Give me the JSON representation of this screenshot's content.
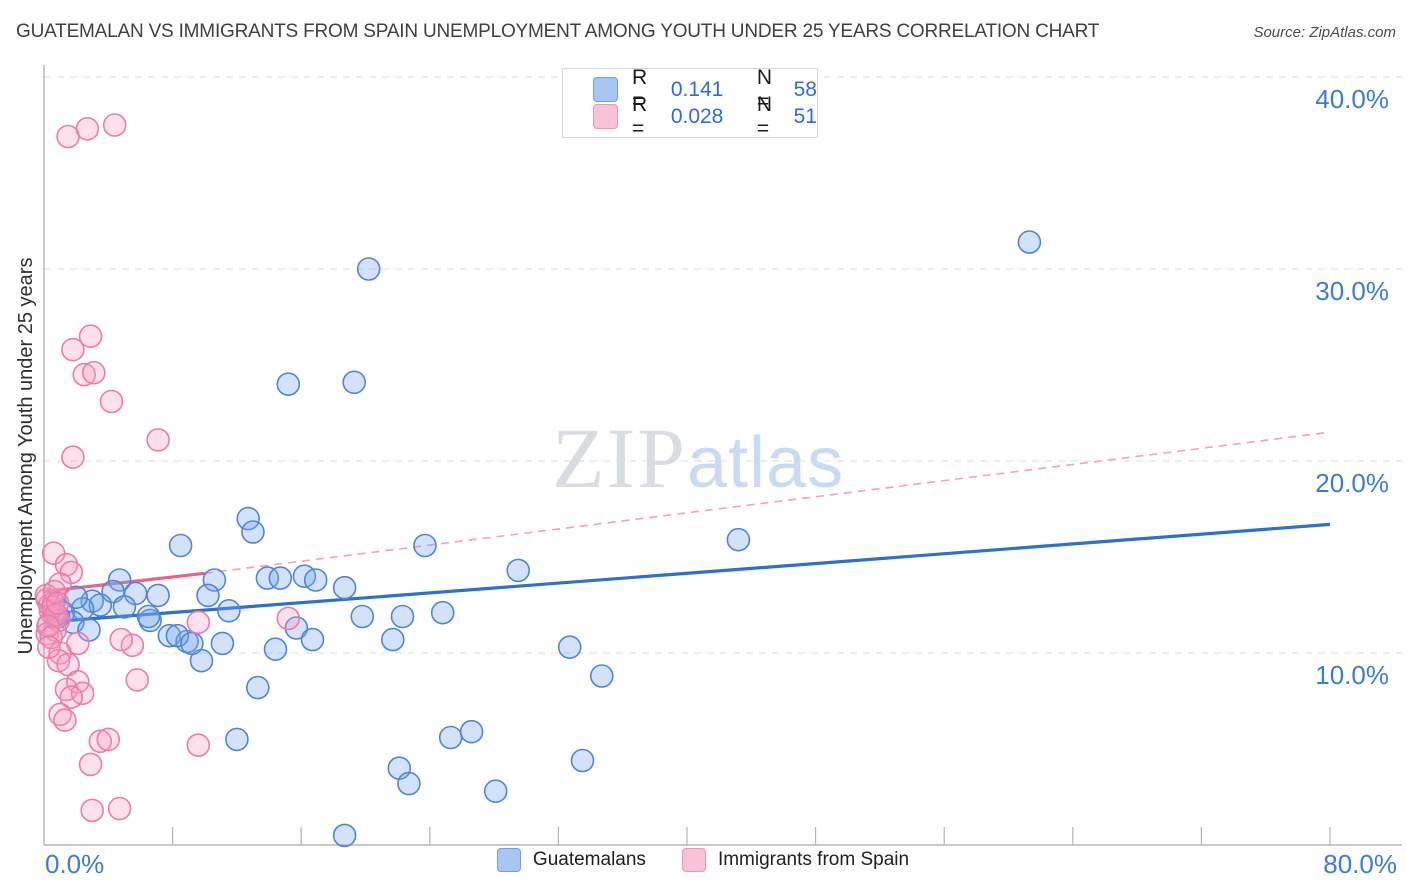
{
  "page": {
    "title": "GUATEMALAN VS IMMIGRANTS FROM SPAIN UNEMPLOYMENT AMONG YOUTH UNDER 25 YEARS CORRELATION CHART",
    "source": "Source: ZipAtlas.com"
  },
  "watermark": {
    "zip": "ZIP",
    "atlas": "atlas"
  },
  "legend_box": {
    "rows": [
      {
        "series": "Guatemalans",
        "r_label": "R =",
        "r_value": "0.141",
        "n_label": "N =",
        "n_value": "58"
      },
      {
        "series": "Immigrants from Spain",
        "r_label": "R =",
        "r_value": "0.028",
        "n_label": "N =",
        "n_value": "51"
      }
    ]
  },
  "bottom_legend": [
    {
      "label": "Guatemalans"
    },
    {
      "label": "Immigrants from Spain"
    }
  ],
  "chart_data": {
    "type": "scatter",
    "title": "Guatemalan vs Immigrants from Spain Unemployment Among Youth under 25 years",
    "xlabel": "",
    "ylabel": "Unemployment Among Youth under 25 years",
    "xlim": [
      0,
      80
    ],
    "ylim": [
      0,
      40.6
    ],
    "grid": true,
    "x_tick_step": 8,
    "x_tick_labels": {
      "left": "0.0%",
      "right": "80.0%"
    },
    "y_ticks": [
      {
        "value": 40,
        "label": "40.0%"
      },
      {
        "value": 30,
        "label": "30.0%"
      },
      {
        "value": 20,
        "label": "20.0%"
      },
      {
        "value": 10,
        "label": "10.0%"
      }
    ],
    "colors": {
      "axis": "#a6a6a6",
      "tick": "#b3b3b3",
      "gridline": "#dcdcdc",
      "axis_label": "#3d7bd9",
      "blue_accent": "#2f6bd8"
    },
    "series": [
      {
        "key": "guatemalans",
        "name": "Guatemalans",
        "R": 0.141,
        "N": 58,
        "fill": "rgba(122,166,233,0.33)",
        "stroke": "#4f86d4",
        "swatch_fill": "#a8c6f0",
        "swatch_border": "#6d9eeb",
        "points": [
          [
            20.2,
            30.0
          ],
          [
            61.3,
            31.4
          ],
          [
            15.2,
            24.0
          ],
          [
            19.3,
            24.1
          ],
          [
            12.7,
            17.0
          ],
          [
            13.0,
            16.3
          ],
          [
            8.5,
            15.6
          ],
          [
            23.7,
            15.6
          ],
          [
            43.2,
            15.9
          ],
          [
            29.5,
            14.3
          ],
          [
            10.6,
            13.8
          ],
          [
            4.7,
            13.8
          ],
          [
            13.9,
            13.9
          ],
          [
            14.7,
            13.9
          ],
          [
            16.2,
            14.0
          ],
          [
            16.9,
            13.8
          ],
          [
            18.7,
            13.4
          ],
          [
            10.2,
            13.0
          ],
          [
            7.1,
            13.0
          ],
          [
            11.5,
            12.2
          ],
          [
            19.8,
            11.9
          ],
          [
            22.3,
            11.9
          ],
          [
            24.8,
            12.1
          ],
          [
            6.6,
            11.7
          ],
          [
            7.8,
            10.9
          ],
          [
            8.9,
            10.6
          ],
          [
            15.7,
            11.3
          ],
          [
            16.7,
            10.7
          ],
          [
            21.7,
            10.7
          ],
          [
            14.4,
            10.2
          ],
          [
            11.1,
            10.5
          ],
          [
            9.8,
            9.6
          ],
          [
            13.3,
            8.2
          ],
          [
            32.7,
            10.3
          ],
          [
            34.7,
            8.8
          ],
          [
            25.3,
            5.6
          ],
          [
            26.6,
            5.9
          ],
          [
            33.5,
            4.4
          ],
          [
            28.1,
            2.8
          ],
          [
            22.1,
            4.0
          ],
          [
            22.7,
            3.2
          ],
          [
            18.7,
            0.5
          ],
          [
            12.0,
            5.5
          ],
          [
            4.3,
            13.2
          ],
          [
            3.0,
            12.7
          ],
          [
            3.5,
            12.5
          ],
          [
            2.4,
            12.3
          ],
          [
            0.6,
            12.6
          ],
          [
            5.7,
            13.1
          ],
          [
            6.5,
            11.9
          ],
          [
            8.3,
            10.9
          ],
          [
            9.2,
            10.5
          ],
          [
            1.2,
            12.1
          ],
          [
            1.8,
            11.6
          ],
          [
            2.8,
            11.2
          ],
          [
            0.9,
            11.9
          ],
          [
            2.0,
            12.9
          ],
          [
            5.0,
            12.4
          ]
        ]
      },
      {
        "key": "spain",
        "name": "Immigrants from Spain",
        "R": 0.028,
        "N": 51,
        "fill": "rgba(246,157,196,0.30)",
        "stroke": "#ec7ca6",
        "swatch_fill": "#f8c3d9",
        "swatch_border": "#ef93b5",
        "points": [
          [
            1.5,
            36.9
          ],
          [
            2.7,
            37.3
          ],
          [
            4.4,
            37.5
          ],
          [
            2.9,
            26.5
          ],
          [
            1.8,
            25.8
          ],
          [
            2.5,
            24.5
          ],
          [
            3.1,
            24.6
          ],
          [
            4.2,
            23.1
          ],
          [
            7.1,
            21.1
          ],
          [
            1.8,
            20.2
          ],
          [
            0.6,
            15.2
          ],
          [
            1.4,
            14.6
          ],
          [
            1.7,
            14.2
          ],
          [
            1.0,
            13.6
          ],
          [
            15.2,
            11.8
          ],
          [
            9.6,
            11.6
          ],
          [
            5.5,
            10.4
          ],
          [
            2.1,
            10.5
          ],
          [
            1.0,
            10.0
          ],
          [
            0.9,
            9.6
          ],
          [
            1.5,
            9.4
          ],
          [
            2.1,
            8.5
          ],
          [
            1.4,
            8.1
          ],
          [
            2.4,
            7.9
          ],
          [
            1.7,
            7.7
          ],
          [
            1.0,
            6.8
          ],
          [
            1.3,
            6.5
          ],
          [
            3.5,
            5.4
          ],
          [
            4.0,
            5.5
          ],
          [
            2.9,
            4.2
          ],
          [
            9.6,
            5.2
          ],
          [
            3.0,
            1.8
          ],
          [
            4.7,
            1.9
          ],
          [
            5.8,
            8.6
          ],
          [
            4.8,
            10.7
          ],
          [
            0.2,
            12.8
          ],
          [
            0.4,
            12.2
          ],
          [
            0.6,
            11.9
          ],
          [
            0.3,
            11.5
          ],
          [
            0.7,
            11.2
          ],
          [
            0.2,
            11.0
          ],
          [
            0.9,
            11.7
          ],
          [
            0.35,
            12.5
          ],
          [
            0.15,
            13.0
          ],
          [
            0.55,
            12.4
          ],
          [
            0.75,
            12.0
          ],
          [
            0.25,
            11.4
          ],
          [
            0.45,
            10.8
          ],
          [
            0.65,
            13.2
          ],
          [
            0.85,
            12.6
          ],
          [
            0.3,
            10.3
          ]
        ]
      }
    ],
    "trend_lines": [
      {
        "series": "guatemalans",
        "style": "solid",
        "color": "#2e6fd0",
        "width": 3.2,
        "from": [
          0,
          11.6
        ],
        "to": [
          80,
          16.7
        ]
      },
      {
        "series": "spain",
        "style": "solid",
        "color": "#e8638c",
        "width": 3.2,
        "from": [
          0,
          13.2
        ],
        "to": [
          10,
          14.15
        ]
      },
      {
        "series": "spain",
        "style": "dashed",
        "color": "#f0a2bb",
        "width": 1.6,
        "from": [
          10,
          14.15
        ],
        "to": [
          80,
          21.5
        ]
      }
    ],
    "legend_position": "bottom"
  }
}
